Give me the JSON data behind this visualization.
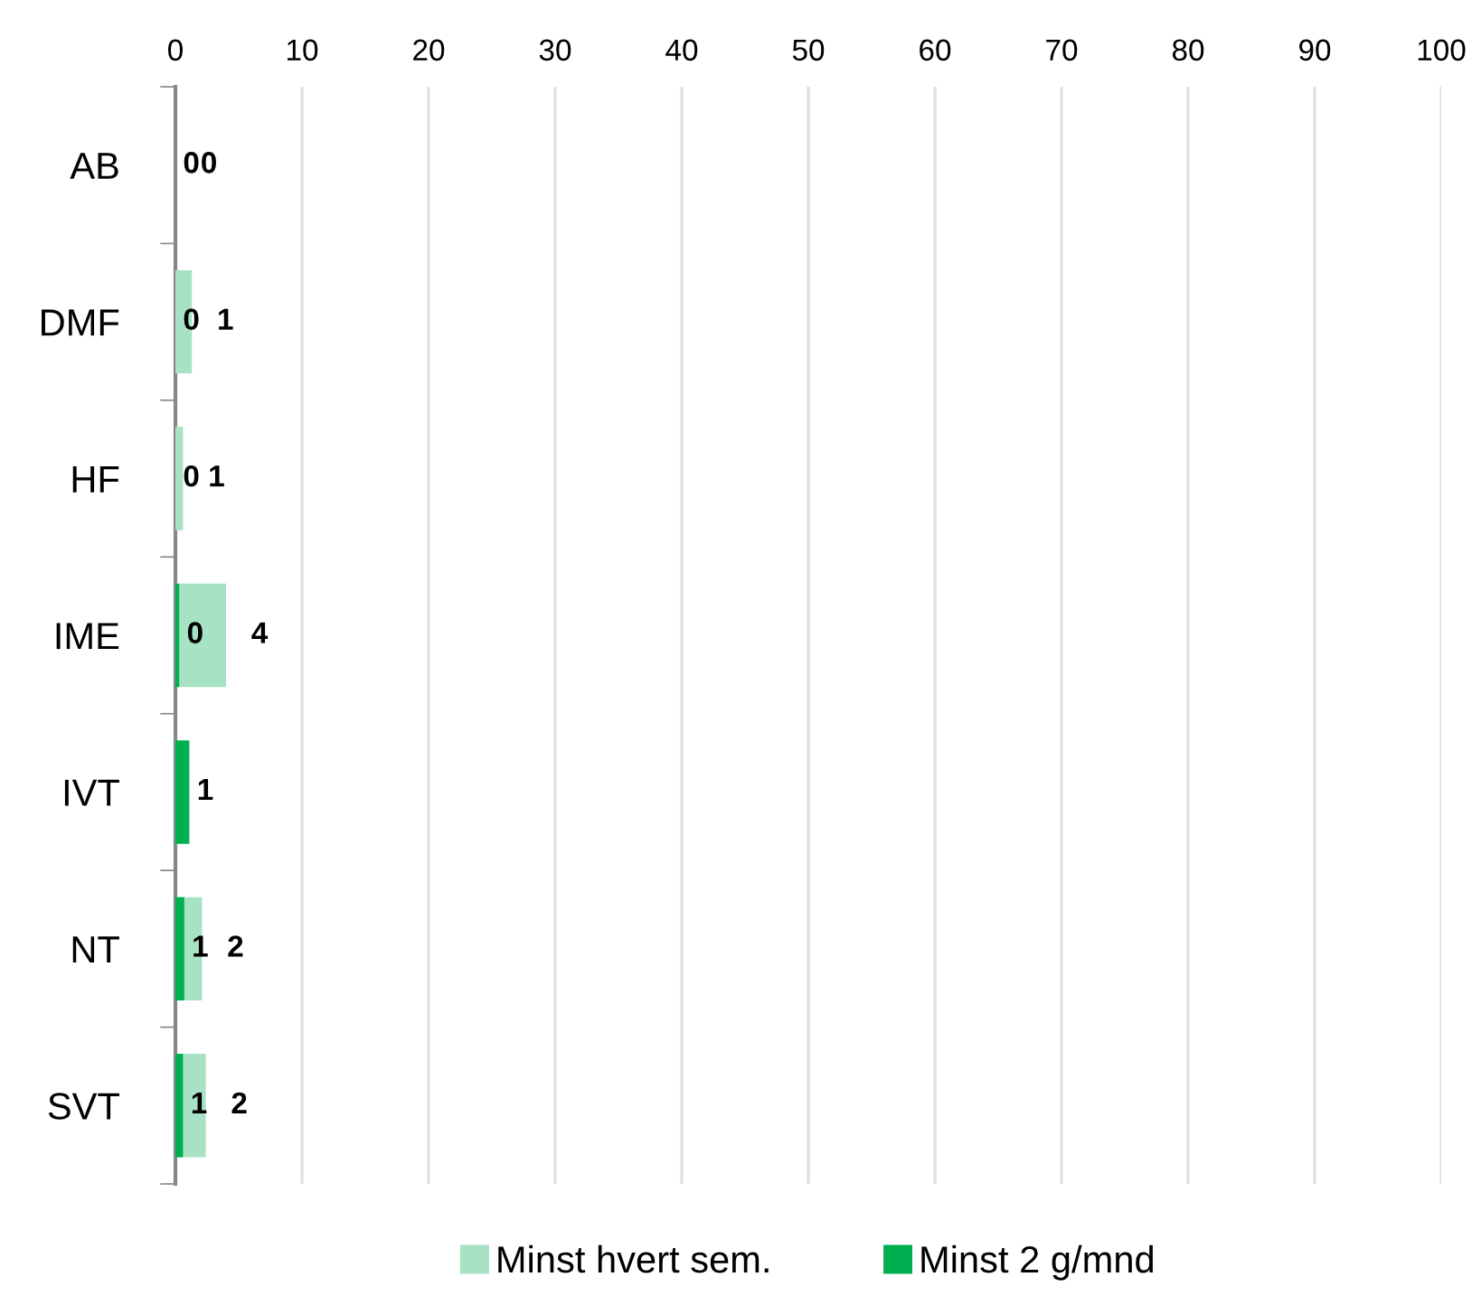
{
  "chart_data": {
    "type": "bar",
    "orientation": "horizontal",
    "categories": [
      "AB",
      "DMF",
      "HF",
      "IME",
      "IVT",
      "NT",
      "SVT"
    ],
    "series": [
      {
        "name": "Minst hvert sem.",
        "color": "#a8e2c5",
        "values": [
          0,
          1.3,
          0.6,
          4.0,
          null,
          2.1,
          2.4
        ],
        "value_labels": [
          "0",
          "1",
          "1",
          "4",
          null,
          "2",
          "2"
        ]
      },
      {
        "name": "Minst 2 g/mnd",
        "color": "#00b050",
        "values": [
          0,
          0,
          0,
          0.3,
          1.1,
          0.7,
          0.6
        ],
        "value_labels": [
          "0",
          "0",
          "0",
          "0",
          "1",
          "1",
          "1"
        ]
      }
    ],
    "xlim": [
      0,
      100
    ],
    "xticks": [
      0,
      10,
      20,
      30,
      40,
      50,
      60,
      70,
      80,
      90,
      100
    ],
    "grid": "x",
    "legend": "bottom"
  }
}
